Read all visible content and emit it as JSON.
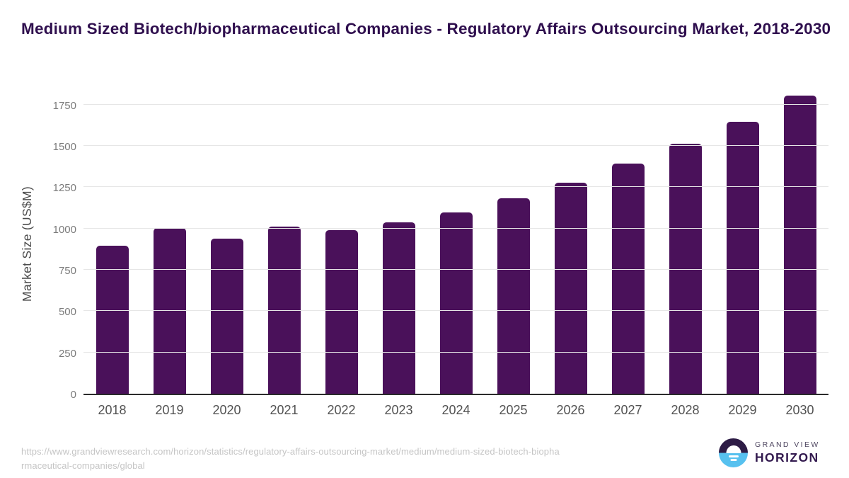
{
  "title": "Medium Sized Biotech/biopharmaceutical Companies - Regulatory Affairs Outsourcing Market, 2018-2030",
  "chart_data": {
    "type": "bar",
    "title": "Medium Sized Biotech/biopharmaceutical Companies - Regulatory Affairs Outsourcing Market, 2018-2030",
    "categories": [
      "2018",
      "2019",
      "2020",
      "2021",
      "2022",
      "2023",
      "2024",
      "2025",
      "2026",
      "2027",
      "2028",
      "2029",
      "2030"
    ],
    "values": [
      895,
      1005,
      938,
      1012,
      990,
      1037,
      1099,
      1184,
      1279,
      1393,
      1513,
      1648,
      1805
    ],
    "xlabel": "",
    "ylabel": "Market Size (US$M)",
    "yticks": [
      0,
      250,
      500,
      750,
      1000,
      1250,
      1500,
      1750
    ],
    "ylim": [
      0,
      1835
    ],
    "grid": true,
    "legend": false,
    "bar_color": "#4a115a"
  },
  "colors": {
    "title": "#2f0f4e",
    "bar": "#4a115a",
    "gridline": "#e6e6e6",
    "axis_line": "#2b2b2b",
    "y_tick_label": "#7b7b7b",
    "x_label": "#525252",
    "source_text": "#c5c5c5",
    "logo_dark": "#2d1b45",
    "logo_blue": "#57c1ef"
  },
  "footer": {
    "url_lines": [
      "https://www.grandviewresearch.com/horizon/statistics/regulatory-affairs-outsourcing-market/medium/medium-sized-biotech-biopha",
      "rmaceutical-companies/global"
    ],
    "logo": {
      "brand_top": "GRAND VIEW",
      "brand_bottom": "HORIZON"
    }
  }
}
